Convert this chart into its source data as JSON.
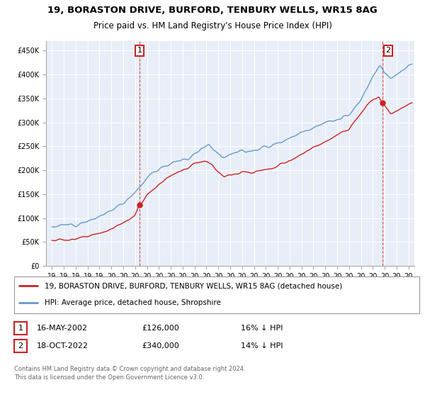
{
  "title1": "19, BORASTON DRIVE, BURFORD, TENBURY WELLS, WR15 8AG",
  "title2": "Price paid vs. HM Land Registry's House Price Index (HPI)",
  "ylabel_ticks": [
    "£0",
    "£50K",
    "£100K",
    "£150K",
    "£200K",
    "£250K",
    "£300K",
    "£350K",
    "£400K",
    "£450K"
  ],
  "ytick_values": [
    0,
    50000,
    100000,
    150000,
    200000,
    250000,
    300000,
    350000,
    400000,
    450000
  ],
  "ylim": [
    0,
    470000
  ],
  "xlim_start": 1994.5,
  "xlim_end": 2025.5,
  "hpi_color": "#6699cc",
  "price_color": "#cc2222",
  "marker1_date": 2002.37,
  "marker1_value": 126000,
  "marker1_label": "1",
  "marker2_date": 2022.79,
  "marker2_value": 340000,
  "marker2_label": "2",
  "legend_line1": "19, BORASTON DRIVE, BURFORD, TENBURY WELLS, WR15 8AG (detached house)",
  "legend_line2": "HPI: Average price, detached house, Shropshire",
  "table_row1": [
    "1",
    "16-MAY-2002",
    "£126,000",
    "16% ↓ HPI"
  ],
  "table_row2": [
    "2",
    "18-OCT-2022",
    "£340,000",
    "14% ↓ HPI"
  ],
  "footnote": "Contains HM Land Registry data © Crown copyright and database right 2024.\nThis data is licensed under the Open Government Licence v3.0.",
  "background_color": "#ffffff",
  "chart_bg_color": "#e8eef7",
  "grid_color": "#ffffff"
}
